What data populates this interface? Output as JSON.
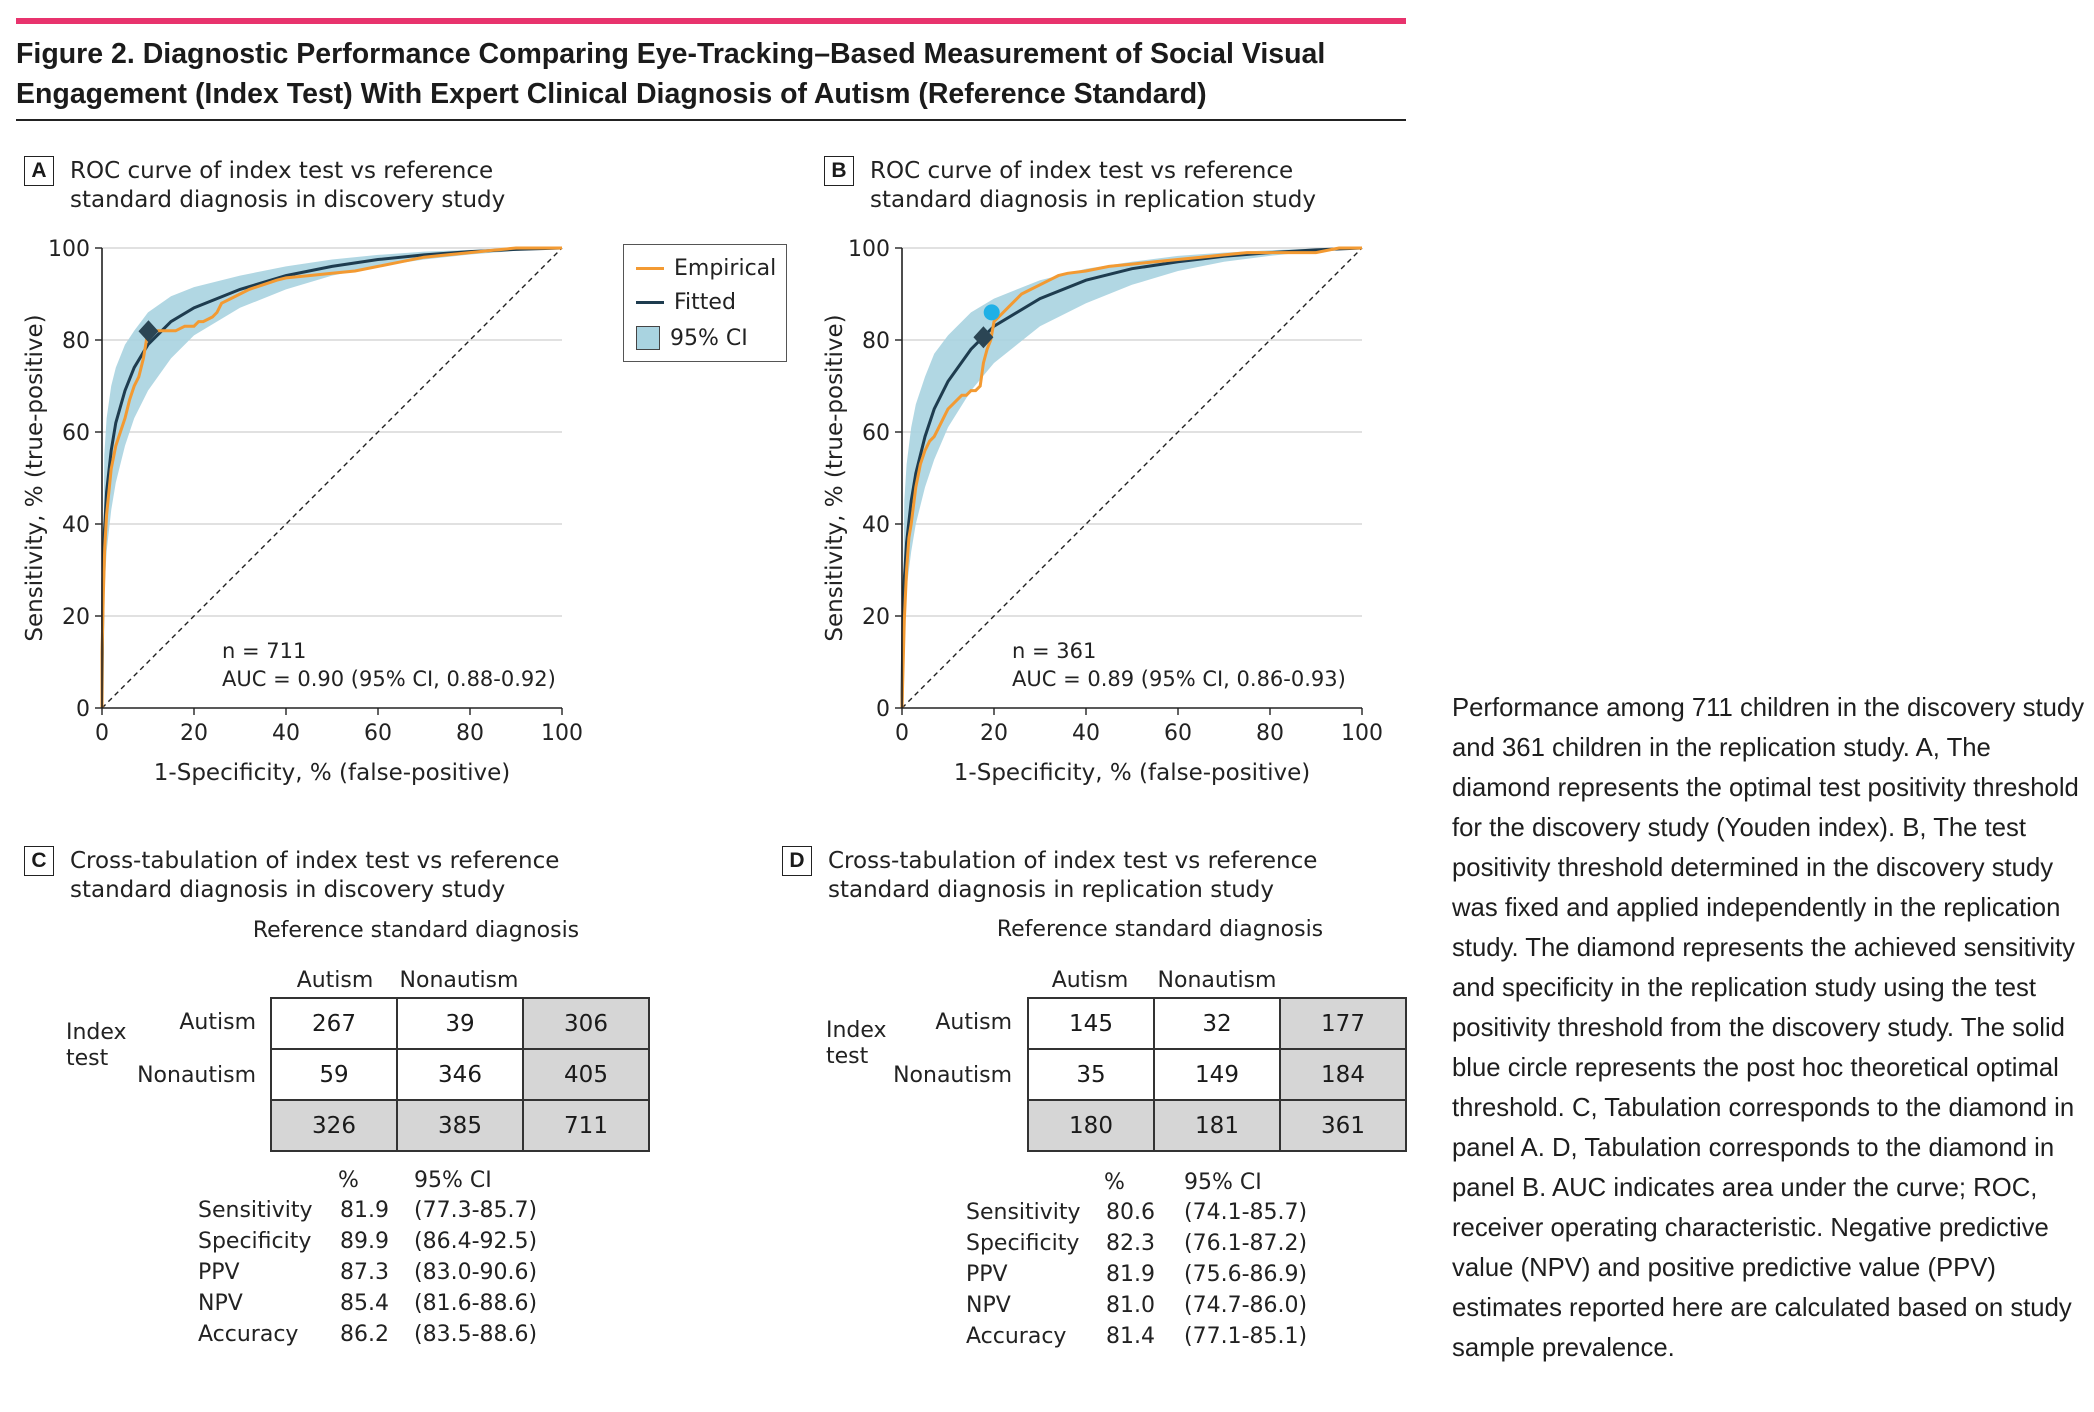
{
  "figure_title": "Figure 2. Diagnostic Performance Comparing Eye-Tracking–Based Measurement of Social Visual Engagement (Index Test) With Expert Clinical Diagnosis of Autism (Reference Standard)",
  "panels": {
    "a": {
      "letter": "A",
      "title": "ROC curve of index test vs reference standard diagnosis in discovery study",
      "n_text": "n = 711",
      "auc_text": "AUC = 0.90 (95% CI, 0.88-0.92)"
    },
    "b": {
      "letter": "B",
      "title": "ROC curve of index test vs reference standard diagnosis in replication study",
      "n_text": "n = 361",
      "auc_text": "AUC = 0.89 (95% CI, 0.86-0.93)"
    },
    "c": {
      "letter": "C",
      "title": "Cross-tabulation of index test vs reference standard diagnosis in discovery study"
    },
    "d": {
      "letter": "D",
      "title": "Cross-tabulation of index test vs reference standard diagnosis in replication study"
    }
  },
  "legend": {
    "empirical": "Empirical",
    "fitted": "Fitted",
    "ci": "95% CI"
  },
  "colors": {
    "empirical": "#f39a32",
    "fitted": "#1e3c4f",
    "ci": "#a9d3e0",
    "accent": "#e8336d",
    "marker_diamond": "#2b4554",
    "marker_circle": "#1fb0e6"
  },
  "axes": {
    "xlabel": "1-Specificity, % (false-positive)",
    "ylabel": "Sensitivity, % (true-positive)",
    "ticks": [
      "0",
      "20",
      "40",
      "60",
      "80",
      "100"
    ]
  },
  "chart_data": [
    {
      "type": "line",
      "panel": "A",
      "xlim": [
        0,
        100
      ],
      "ylim": [
        0,
        100
      ],
      "grid": true,
      "legend_position": "top-right",
      "xlabel": "1-Specificity, % (false-positive)",
      "ylabel": "Sensitivity, % (true-positive)",
      "series": [
        {
          "name": "Empirical",
          "x": [
            0,
            0,
            0.3,
            0.6,
            1,
            1.5,
            2,
            3,
            4,
            5,
            6,
            7,
            8,
            8.5,
            9,
            9.5,
            10,
            10.1,
            13,
            16,
            18,
            20,
            21,
            22,
            24,
            25,
            26,
            28,
            30,
            32,
            35,
            38,
            40,
            45,
            50,
            55,
            60,
            65,
            70,
            75,
            80,
            85,
            90,
            95,
            100
          ],
          "y": [
            0,
            12,
            25,
            35,
            42,
            47,
            52,
            57,
            60,
            63,
            67,
            70,
            72,
            74,
            76,
            79,
            82,
            82,
            82,
            82,
            83,
            83,
            84,
            84,
            85,
            86,
            88,
            89,
            90,
            91,
            92,
            93,
            93.5,
            94,
            94.5,
            95,
            96,
            97,
            98,
            98.5,
            99,
            99.5,
            100,
            100,
            100
          ]
        },
        {
          "name": "Fitted",
          "x": [
            0,
            0.2,
            0.5,
            1,
            2,
            3,
            5,
            7,
            10,
            15,
            20,
            30,
            40,
            50,
            60,
            70,
            80,
            90,
            100
          ],
          "y": [
            0,
            28,
            38,
            47,
            56,
            62,
            69,
            74,
            79,
            84,
            87,
            91,
            94,
            96,
            97.5,
            98.5,
            99.2,
            99.7,
            100
          ]
        },
        {
          "name": "95% CI",
          "x": [
            0,
            0.5,
            1,
            2,
            3,
            5,
            7,
            10,
            15,
            20,
            30,
            40,
            50,
            60,
            70,
            80,
            90,
            100
          ],
          "lower": [
            0,
            25,
            34,
            43,
            49,
            57,
            63,
            69,
            76,
            81,
            87,
            91,
            94,
            96,
            97.5,
            98.6,
            99.4,
            100
          ],
          "upper": [
            0,
            55,
            63,
            70,
            74,
            79,
            82,
            86,
            89.5,
            91.5,
            94,
            96,
            97.5,
            98.5,
            99.2,
            99.6,
            99.9,
            100
          ]
        }
      ],
      "markers": [
        {
          "shape": "diamond",
          "x": 10.1,
          "y": 81.9
        }
      ],
      "reference_line": {
        "x": [
          0,
          100
        ],
        "y": [
          0,
          100
        ]
      }
    },
    {
      "type": "line",
      "panel": "B",
      "xlim": [
        0,
        100
      ],
      "ylim": [
        0,
        100
      ],
      "grid": true,
      "xlabel": "1-Specificity, % (false-positive)",
      "ylabel": "Sensitivity, % (true-positive)",
      "series": [
        {
          "name": "Empirical",
          "x": [
            0,
            0.5,
            1,
            1.5,
            2,
            3,
            4,
            5,
            6,
            7,
            8,
            9,
            10,
            11,
            12,
            13,
            14,
            15,
            16,
            17,
            17.7,
            18.5,
            19.3,
            20,
            22,
            24,
            26,
            28,
            30,
            32,
            34,
            36,
            40,
            45,
            50,
            55,
            60,
            65,
            70,
            75,
            80,
            85,
            90,
            95,
            100
          ],
          "y": [
            0,
            19,
            30,
            37,
            40,
            48,
            53,
            56,
            58,
            59,
            61,
            63,
            65,
            66,
            67,
            68,
            68,
            69,
            69,
            70,
            75,
            78,
            80,
            84,
            86,
            88,
            90,
            91,
            92,
            93,
            94,
            94.5,
            95,
            96,
            96.5,
            97,
            97.5,
            98,
            98.5,
            99,
            99,
            99,
            99,
            100,
            100
          ]
        },
        {
          "name": "Fitted",
          "x": [
            0,
            0.2,
            0.5,
            1,
            2,
            3,
            5,
            7,
            10,
            15,
            20,
            30,
            40,
            50,
            60,
            70,
            80,
            90,
            100
          ],
          "y": [
            0,
            20,
            28,
            36,
            45,
            51,
            59,
            65,
            71,
            78,
            83,
            89,
            93,
            95.5,
            97,
            98.2,
            99,
            99.6,
            100
          ]
        },
        {
          "name": "95% CI",
          "x": [
            0,
            0.5,
            1,
            2,
            3,
            5,
            7,
            10,
            15,
            20,
            30,
            40,
            50,
            60,
            70,
            80,
            90,
            100
          ],
          "lower": [
            0,
            19,
            26,
            34,
            40,
            48,
            54,
            61,
            69,
            75,
            83,
            88,
            92,
            95,
            97,
            98.3,
            99.3,
            100
          ],
          "upper": [
            0,
            45,
            53,
            61,
            66,
            72,
            77,
            81,
            86,
            89,
            93,
            95.5,
            97,
            98.3,
            99,
            99.5,
            99.9,
            100
          ]
        }
      ],
      "markers": [
        {
          "shape": "diamond",
          "x": 17.7,
          "y": 80.6
        },
        {
          "shape": "circle",
          "x": 19.5,
          "y": 86
        }
      ],
      "reference_line": {
        "x": [
          0,
          100
        ],
        "y": [
          0,
          100
        ]
      }
    },
    {
      "type": "table",
      "panel": "C",
      "header": "Reference standard diagnosis",
      "columns": [
        "Autism",
        "Nonautism"
      ],
      "index_label": "Index test",
      "rows": [
        {
          "label": "Autism",
          "values": [
            "267",
            "39"
          ],
          "total": "306"
        },
        {
          "label": "Nonautism",
          "values": [
            "59",
            "346"
          ],
          "total": "405"
        }
      ],
      "totals": [
        "326",
        "385",
        "711"
      ],
      "stats_headers": [
        "%",
        "95% CI"
      ],
      "stats": [
        {
          "label": "Sensitivity",
          "pct": "81.9",
          "ci": "(77.3-85.7)"
        },
        {
          "label": "Specificity",
          "pct": "89.9",
          "ci": "(86.4-92.5)"
        },
        {
          "label": "PPV",
          "pct": "87.3",
          "ci": "(83.0-90.6)"
        },
        {
          "label": "NPV",
          "pct": "85.4",
          "ci": "(81.6-88.6)"
        },
        {
          "label": "Accuracy",
          "pct": "86.2",
          "ci": "(83.5-88.6)"
        }
      ]
    },
    {
      "type": "table",
      "panel": "D",
      "header": "Reference standard diagnosis",
      "columns": [
        "Autism",
        "Nonautism"
      ],
      "index_label": "Index test",
      "rows": [
        {
          "label": "Autism",
          "values": [
            "145",
            "32"
          ],
          "total": "177"
        },
        {
          "label": "Nonautism",
          "values": [
            "35",
            "149"
          ],
          "total": "184"
        }
      ],
      "totals": [
        "180",
        "181",
        "361"
      ],
      "stats_headers": [
        "%",
        "95% CI"
      ],
      "stats": [
        {
          "label": "Sensitivity",
          "pct": "80.6",
          "ci": "(74.1-85.7)"
        },
        {
          "label": "Specificity",
          "pct": "82.3",
          "ci": "(76.1-87.2)"
        },
        {
          "label": "PPV",
          "pct": "81.9",
          "ci": "(75.6-86.9)"
        },
        {
          "label": "NPV",
          "pct": "81.0",
          "ci": "(74.7-86.0)"
        },
        {
          "label": "Accuracy",
          "pct": "81.4",
          "ci": "(77.1-85.1)"
        }
      ]
    }
  ],
  "caption": "Performance among 711 children in the discovery study and 361 children in the replication study. A, The diamond represents the optimal test positivity threshold for the discovery study (Youden index). B, The test positivity threshold determined in the discovery study was fixed and applied independently in the replication study. The diamond represents the achieved sensitivity and specificity in the replication study using the test positivity threshold from the discovery study. The solid blue circle represents the post hoc theoretical optimal threshold. C, Tabulation corresponds to the diamond in panel A. D, Tabulation corresponds to the diamond in panel B. AUC indicates area under the curve; ROC, receiver operating characteristic. Negative predictive value (NPV) and positive predictive value (PPV) estimates reported here are calculated based on study sample prevalence."
}
